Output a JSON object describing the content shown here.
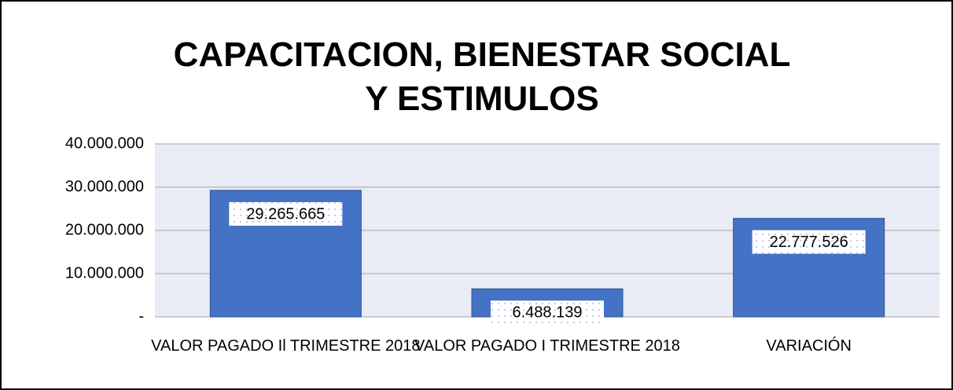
{
  "chart_data": {
    "type": "bar",
    "title": "CAPACITACION, BIENESTAR SOCIAL Y ESTIMULOS",
    "categories": [
      "VALOR PAGADO Il TRIMESTRE 2018",
      "VALOR PAGADO I TRIMESTRE 2018",
      "VARIACIÓN"
    ],
    "values": [
      29265665,
      6488139,
      22777526
    ],
    "value_labels": [
      "29.265.665",
      "6.488.139",
      "22.777.526"
    ],
    "color": "#4472c4",
    "ylim": [
      0,
      40000000
    ],
    "yticks": [
      {
        "value": 0,
        "label": "-"
      },
      {
        "value": 10000000,
        "label": "10.000.000"
      },
      {
        "value": 20000000,
        "label": "20.000.000"
      },
      {
        "value": 30000000,
        "label": "30.000.000"
      },
      {
        "value": 40000000,
        "label": "40.000.000"
      }
    ],
    "grid": true
  }
}
